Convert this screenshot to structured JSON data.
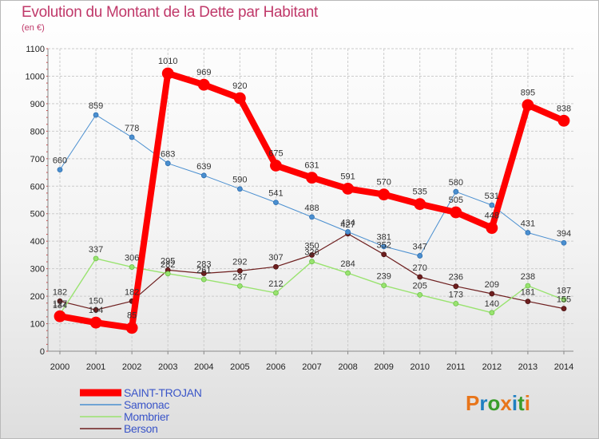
{
  "chart_data": {
    "type": "line",
    "title": "Evolution du Montant de la Dette par Habitant",
    "subtitle": "(en €)",
    "xlabel": "",
    "ylabel": "",
    "x": [
      "2000",
      "2001",
      "2002",
      "2003",
      "2004",
      "2005",
      "2006",
      "2007",
      "2008",
      "2009",
      "2010",
      "2011",
      "2012",
      "2013",
      "2014"
    ],
    "ylim": [
      0,
      1100
    ],
    "yticks": [
      0,
      100,
      200,
      300,
      400,
      500,
      600,
      700,
      800,
      900,
      1000,
      1100
    ],
    "grid": true,
    "legend_position": "bottom-left",
    "series": [
      {
        "name": "SAINT-TROJAN",
        "color": "#ff0000",
        "values": [
          127,
          104,
          85,
          1010,
          969,
          920,
          675,
          631,
          591,
          570,
          535,
          505,
          448,
          895,
          838
        ]
      },
      {
        "name": "Samonac",
        "color": "#4a8fd0",
        "values": [
          660,
          859,
          778,
          683,
          639,
          590,
          541,
          488,
          434,
          381,
          347,
          580,
          531,
          431,
          394
        ]
      },
      {
        "name": "Mombrier",
        "color": "#99e36f",
        "values": [
          134,
          337,
          306,
          282,
          261,
          237,
          212,
          326,
          284,
          239,
          205,
          173,
          140,
          238,
          187
        ]
      },
      {
        "name": "Berson",
        "color": "#6e1f1f",
        "values": [
          182,
          150,
          182,
          295,
          283,
          292,
          307,
          350,
          427,
          352,
          270,
          236,
          209,
          181,
          155
        ]
      }
    ]
  },
  "logo": {
    "text": "Proxiti",
    "colors": [
      "#e8751a",
      "#1f7fc1",
      "#3a9d2b",
      "#e8751a",
      "#1f7fc1",
      "#3a9d2b",
      "#e8751a"
    ]
  }
}
